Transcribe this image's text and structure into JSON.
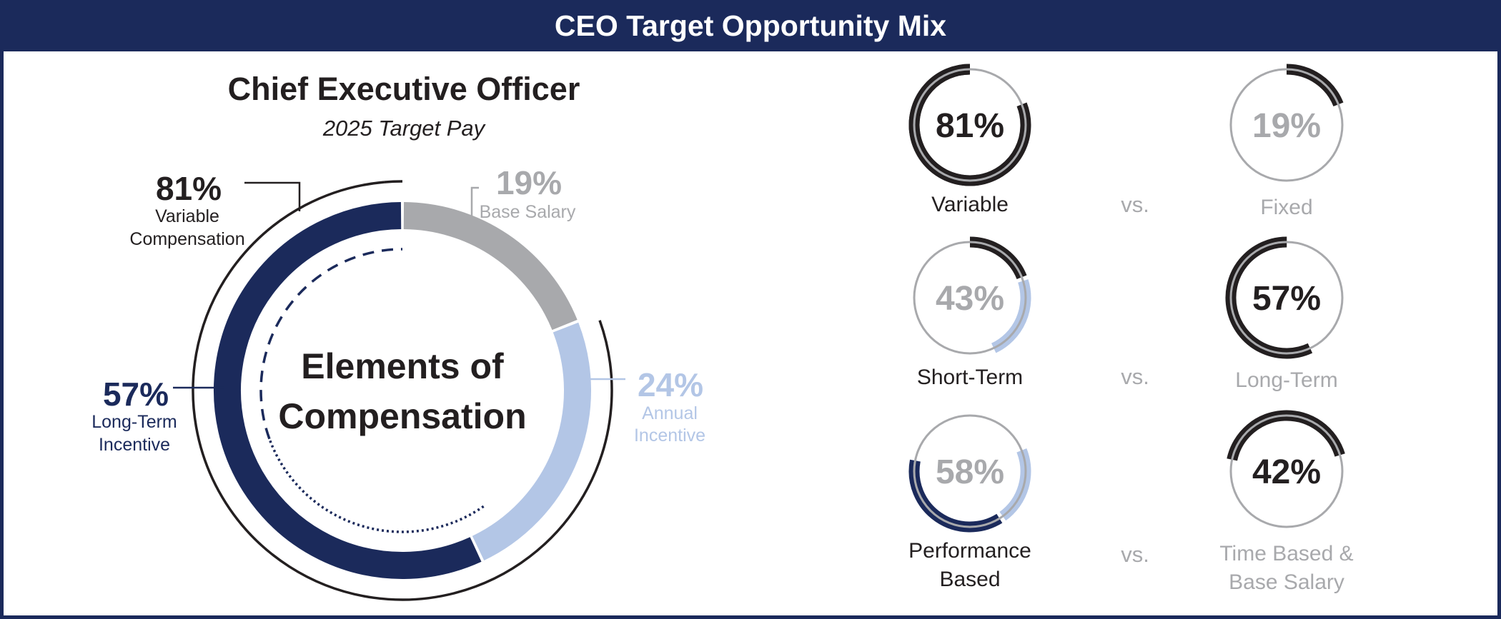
{
  "banner_title": "CEO Target Opportunity Mix",
  "colors": {
    "navy": "#1b2a5b",
    "gray": "#a8a9ac",
    "light_blue": "#b3c6e6",
    "black": "#231f20",
    "white": "#ffffff"
  },
  "chart_data": [
    {
      "type": "donut",
      "title": "Chief Executive Officer",
      "subtitle": "2025 Target Pay",
      "center_label": [
        "Elements of",
        "Compensation"
      ],
      "slices": [
        {
          "name": "Base Salary",
          "value": 19,
          "pct_label": "19%",
          "label_lines": [
            "Base Salary"
          ],
          "color_key": "gray"
        },
        {
          "name": "Annual Incentive",
          "value": 24,
          "pct_label": "24%",
          "label_lines": [
            "Annual",
            "Incentive"
          ],
          "color_key": "light_blue"
        },
        {
          "name": "Long-Term Incentive",
          "value": 57,
          "pct_label": "57%",
          "label_lines": [
            "Long-Term",
            "Incentive"
          ],
          "color_key": "navy"
        }
      ],
      "callouts": [
        {
          "name": "Variable Compensation",
          "pct_label": "81%",
          "label_lines": [
            "Variable",
            "Compensation"
          ],
          "value": 81
        }
      ]
    },
    {
      "type": "donut_comparisons",
      "vs_label": "vs.",
      "rows": [
        {
          "left": {
            "pct_label": "81%",
            "value": 81,
            "label_lines": [
              "Variable"
            ]
          },
          "right": {
            "pct_label": "19%",
            "value": 19,
            "label_lines": [
              "Fixed"
            ]
          }
        },
        {
          "left": {
            "pct_label": "43%",
            "value": 43,
            "label_lines": [
              "Short-Term"
            ]
          },
          "right": {
            "pct_label": "57%",
            "value": 57,
            "label_lines": [
              "Long-Term"
            ]
          }
        },
        {
          "left": {
            "pct_label": "58%",
            "value": 58,
            "label_lines": [
              "Performance",
              "Based"
            ]
          },
          "right": {
            "pct_label": "42%",
            "value": 42,
            "label_lines": [
              "Time Based &",
              "Base Salary"
            ]
          }
        }
      ]
    }
  ]
}
